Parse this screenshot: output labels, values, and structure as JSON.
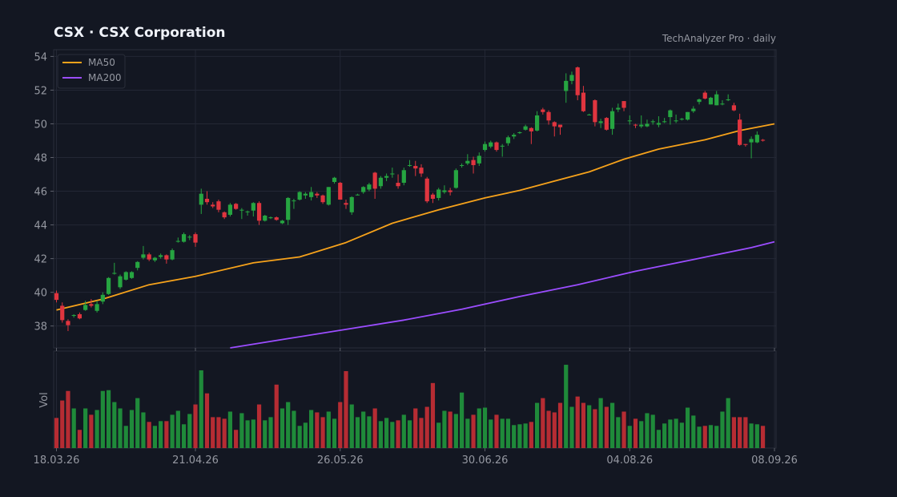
{
  "header": {
    "title": "CSX  ·  CSX Corporation",
    "source": "TechAnalyzer Pro · daily"
  },
  "colors": {
    "background": "#131722",
    "grid": "#232735",
    "up": "#26a541",
    "down": "#e0353f",
    "ma50": "#f6a21b",
    "ma200": "#9b4dff"
  },
  "chart_data": {
    "type": "candlestick",
    "title": "CSX  ·  CSX Corporation",
    "legend": {
      "placement": "top-left",
      "entries": [
        "MA50",
        "MA200"
      ]
    },
    "grid": true,
    "price_axis": {
      "ylim": [
        36.7,
        54.4
      ],
      "ticks": [
        38,
        40,
        42,
        44,
        46,
        48,
        50,
        52,
        54
      ]
    },
    "volume_axis": {
      "label": "Vol",
      "ylim": [
        0,
        1
      ]
    },
    "x_ticks": [
      {
        "label": "18.03.26",
        "index": 0
      },
      {
        "label": "21.04.26",
        "index": 24
      },
      {
        "label": "26.05.26",
        "index": 49
      },
      {
        "label": "30.06.26",
        "index": 74
      },
      {
        "label": "04.08.26",
        "index": 99
      },
      {
        "label": "08.09.26",
        "index": 124
      }
    ],
    "candles": [
      [
        39.95,
        40.1,
        39.4,
        39.55,
        0.38
      ],
      [
        39.2,
        39.4,
        38.2,
        38.35,
        0.6
      ],
      [
        38.3,
        38.4,
        37.7,
        38.05,
        0.72
      ],
      [
        38.6,
        38.7,
        38.5,
        38.65,
        0.5
      ],
      [
        38.7,
        38.8,
        38.4,
        38.45,
        0.23
      ],
      [
        38.95,
        39.5,
        38.9,
        39.25,
        0.5
      ],
      [
        39.3,
        39.6,
        39.1,
        39.2,
        0.42
      ],
      [
        38.9,
        39.5,
        38.8,
        39.3,
        0.48
      ],
      [
        39.45,
        40.0,
        39.3,
        39.85,
        0.72
      ],
      [
        39.9,
        40.9,
        39.85,
        40.85,
        0.73
      ],
      [
        41.1,
        41.75,
        41.05,
        41.15,
        0.58
      ],
      [
        40.3,
        41.05,
        40.2,
        40.95,
        0.5
      ],
      [
        40.75,
        41.25,
        40.7,
        41.2,
        0.28
      ],
      [
        40.85,
        41.25,
        40.8,
        41.2,
        0.48
      ],
      [
        41.45,
        41.85,
        41.3,
        41.8,
        0.63
      ],
      [
        42.05,
        42.75,
        41.95,
        42.25,
        0.45
      ],
      [
        42.25,
        42.35,
        41.85,
        41.95,
        0.33
      ],
      [
        41.9,
        42.1,
        41.8,
        42.05,
        0.28
      ],
      [
        42.1,
        42.3,
        42.0,
        42.2,
        0.34
      ],
      [
        42.2,
        42.25,
        41.7,
        41.95,
        0.34
      ],
      [
        41.95,
        42.6,
        41.9,
        42.5,
        0.42
      ],
      [
        43.0,
        43.25,
        42.95,
        43.05,
        0.47
      ],
      [
        43.0,
        43.55,
        42.95,
        43.45,
        0.3
      ],
      [
        43.25,
        43.4,
        43.1,
        43.3,
        0.43
      ],
      [
        43.45,
        43.55,
        42.7,
        42.95,
        0.55
      ],
      [
        45.2,
        46.15,
        44.65,
        45.85,
        0.98
      ],
      [
        45.55,
        46.0,
        45.2,
        45.35,
        0.69
      ],
      [
        45.2,
        45.35,
        45.0,
        45.1,
        0.39
      ],
      [
        45.4,
        45.5,
        44.75,
        44.9,
        0.39
      ],
      [
        44.75,
        44.8,
        44.35,
        44.45,
        0.37
      ],
      [
        44.6,
        45.3,
        44.5,
        45.2,
        0.46
      ],
      [
        45.25,
        45.3,
        44.9,
        44.95,
        0.23
      ],
      [
        44.85,
        45.0,
        44.35,
        44.9,
        0.44
      ],
      [
        44.75,
        44.85,
        44.55,
        44.8,
        0.35
      ],
      [
        44.85,
        45.35,
        44.5,
        45.3,
        0.36
      ],
      [
        45.3,
        45.4,
        44.0,
        44.25,
        0.55
      ],
      [
        44.25,
        44.6,
        44.2,
        44.55,
        0.35
      ],
      [
        44.4,
        44.5,
        44.35,
        44.45,
        0.39
      ],
      [
        44.45,
        44.5,
        44.25,
        44.3,
        0.8
      ],
      [
        44.1,
        44.3,
        44.05,
        44.25,
        0.5
      ],
      [
        44.3,
        45.65,
        44.0,
        45.6,
        0.58
      ],
      [
        45.45,
        45.55,
        44.95,
        45.45,
        0.47
      ],
      [
        45.5,
        46.0,
        45.45,
        45.95,
        0.28
      ],
      [
        45.75,
        45.95,
        45.55,
        45.85,
        0.32
      ],
      [
        45.65,
        46.25,
        45.45,
        45.95,
        0.48
      ],
      [
        45.85,
        45.95,
        45.6,
        45.75,
        0.45
      ],
      [
        45.75,
        45.8,
        45.25,
        45.35,
        0.39
      ],
      [
        45.2,
        46.25,
        45.15,
        46.25,
        0.46
      ],
      [
        46.55,
        46.85,
        46.45,
        46.8,
        0.37
      ],
      [
        46.5,
        46.55,
        45.5,
        45.5,
        0.58
      ],
      [
        45.3,
        45.5,
        44.95,
        45.2,
        0.97
      ],
      [
        44.75,
        45.7,
        44.6,
        45.65,
        0.55
      ],
      [
        45.8,
        45.85,
        45.75,
        45.8,
        0.39
      ],
      [
        45.95,
        46.3,
        45.85,
        46.25,
        0.46
      ],
      [
        46.1,
        46.5,
        46.0,
        46.4,
        0.4
      ],
      [
        47.1,
        47.15,
        45.55,
        46.15,
        0.5
      ],
      [
        46.3,
        46.9,
        46.15,
        46.8,
        0.34
      ],
      [
        46.8,
        47.05,
        46.6,
        46.9,
        0.38
      ],
      [
        47.0,
        47.4,
        46.8,
        47.05,
        0.33
      ],
      [
        46.5,
        47.0,
        46.15,
        46.3,
        0.35
      ],
      [
        46.5,
        47.4,
        46.35,
        47.25,
        0.42
      ],
      [
        47.55,
        47.85,
        47.45,
        47.55,
        0.35
      ],
      [
        47.5,
        47.8,
        46.9,
        47.35,
        0.5
      ],
      [
        47.4,
        47.6,
        46.85,
        47.05,
        0.38
      ],
      [
        46.75,
        46.85,
        45.3,
        45.4,
        0.52
      ],
      [
        45.8,
        45.9,
        45.3,
        45.55,
        0.82
      ],
      [
        45.6,
        46.2,
        45.45,
        46.1,
        0.32
      ],
      [
        45.95,
        46.35,
        45.85,
        46.05,
        0.47
      ],
      [
        46.05,
        46.2,
        45.75,
        45.95,
        0.46
      ],
      [
        46.2,
        47.35,
        46.15,
        47.25,
        0.43
      ],
      [
        47.55,
        47.65,
        47.4,
        47.55,
        0.7
      ],
      [
        47.65,
        48.2,
        47.55,
        47.8,
        0.37
      ],
      [
        47.85,
        48.05,
        47.05,
        47.55,
        0.42
      ],
      [
        47.65,
        48.3,
        47.5,
        48.1,
        0.5
      ],
      [
        48.45,
        48.95,
        48.35,
        48.8,
        0.51
      ],
      [
        48.65,
        49.0,
        48.55,
        48.9,
        0.36
      ],
      [
        48.9,
        48.95,
        48.35,
        48.45,
        0.42
      ],
      [
        48.65,
        48.8,
        48.05,
        48.7,
        0.37
      ],
      [
        48.85,
        49.3,
        48.7,
        49.2,
        0.37
      ],
      [
        49.25,
        49.45,
        49.1,
        49.35,
        0.29
      ],
      [
        49.45,
        49.55,
        49.4,
        49.5,
        0.3
      ],
      [
        49.65,
        49.95,
        49.6,
        49.85,
        0.31
      ],
      [
        49.75,
        49.8,
        48.8,
        49.55,
        0.33
      ],
      [
        49.6,
        50.75,
        49.55,
        50.5,
        0.57
      ],
      [
        50.85,
        50.95,
        50.55,
        50.7,
        0.63
      ],
      [
        50.7,
        50.8,
        49.95,
        50.2,
        0.47
      ],
      [
        50.1,
        50.15,
        49.25,
        49.85,
        0.45
      ],
      [
        49.95,
        49.95,
        49.35,
        49.8,
        0.57
      ],
      [
        51.95,
        53.0,
        51.25,
        52.55,
        1.05
      ],
      [
        52.55,
        53.1,
        52.35,
        52.9,
        0.52
      ],
      [
        53.35,
        53.4,
        51.4,
        51.7,
        0.65
      ],
      [
        51.85,
        52.25,
        50.7,
        50.75,
        0.57
      ],
      [
        50.55,
        50.6,
        50.5,
        50.55,
        0.54
      ],
      [
        51.4,
        51.45,
        49.85,
        50.1,
        0.49
      ],
      [
        50.05,
        50.3,
        49.75,
        50.15,
        0.63
      ],
      [
        50.35,
        50.4,
        49.6,
        49.65,
        0.52
      ],
      [
        49.7,
        50.95,
        49.35,
        50.75,
        0.57
      ],
      [
        50.85,
        51.2,
        50.7,
        50.95,
        0.39
      ],
      [
        51.35,
        51.35,
        50.75,
        50.95,
        0.46
      ],
      [
        50.15,
        50.5,
        49.95,
        50.2,
        0.28
      ],
      [
        49.95,
        50.0,
        49.75,
        49.9,
        0.37
      ],
      [
        49.85,
        50.5,
        49.75,
        49.95,
        0.34
      ],
      [
        49.85,
        50.25,
        49.8,
        50.0,
        0.44
      ],
      [
        50.1,
        50.25,
        49.95,
        50.15,
        0.42
      ],
      [
        49.95,
        50.45,
        49.8,
        50.05,
        0.23
      ],
      [
        50.1,
        50.35,
        50.05,
        50.15,
        0.31
      ],
      [
        50.4,
        50.85,
        49.95,
        50.8,
        0.36
      ],
      [
        50.15,
        50.55,
        50.05,
        50.2,
        0.37
      ],
      [
        50.25,
        50.35,
        50.2,
        50.3,
        0.32
      ],
      [
        50.25,
        50.7,
        50.2,
        50.7,
        0.51
      ],
      [
        50.75,
        51.05,
        50.65,
        50.9,
        0.41
      ],
      [
        51.3,
        51.5,
        51.15,
        51.45,
        0.27
      ],
      [
        51.85,
        51.95,
        51.45,
        51.5,
        0.28
      ],
      [
        51.15,
        51.6,
        51.15,
        51.55,
        0.29
      ],
      [
        51.1,
        51.95,
        51.1,
        51.75,
        0.28
      ],
      [
        51.15,
        51.4,
        51.1,
        51.2,
        0.46
      ],
      [
        51.4,
        51.75,
        51.35,
        51.45,
        0.63
      ],
      [
        51.1,
        51.25,
        50.75,
        50.8,
        0.39
      ],
      [
        50.25,
        50.6,
        48.7,
        48.75,
        0.39
      ],
      [
        48.8,
        48.8,
        48.65,
        48.75,
        0.39
      ],
      [
        48.9,
        49.25,
        47.95,
        49.1,
        0.31
      ],
      [
        48.9,
        49.55,
        48.85,
        49.35,
        0.3
      ],
      [
        49.05,
        49.1,
        48.95,
        49.0,
        0.28
      ]
    ],
    "ma50": [
      [
        0,
        38.95
      ],
      [
        8,
        39.6
      ],
      [
        16,
        40.45
      ],
      [
        24,
        40.95
      ],
      [
        34,
        41.75
      ],
      [
        42,
        42.1
      ],
      [
        50,
        42.95
      ],
      [
        58,
        44.1
      ],
      [
        66,
        44.9
      ],
      [
        74,
        45.6
      ],
      [
        80,
        46.05
      ],
      [
        86,
        46.6
      ],
      [
        92,
        47.15
      ],
      [
        98,
        47.9
      ],
      [
        104,
        48.5
      ],
      [
        112,
        49.05
      ],
      [
        118,
        49.6
      ],
      [
        124,
        50.0
      ]
    ],
    "ma200": [
      [
        30,
        36.7
      ],
      [
        40,
        37.25
      ],
      [
        50,
        37.8
      ],
      [
        60,
        38.35
      ],
      [
        70,
        39.0
      ],
      [
        80,
        39.75
      ],
      [
        90,
        40.45
      ],
      [
        100,
        41.25
      ],
      [
        110,
        41.95
      ],
      [
        120,
        42.65
      ],
      [
        124,
        43.0
      ]
    ]
  }
}
